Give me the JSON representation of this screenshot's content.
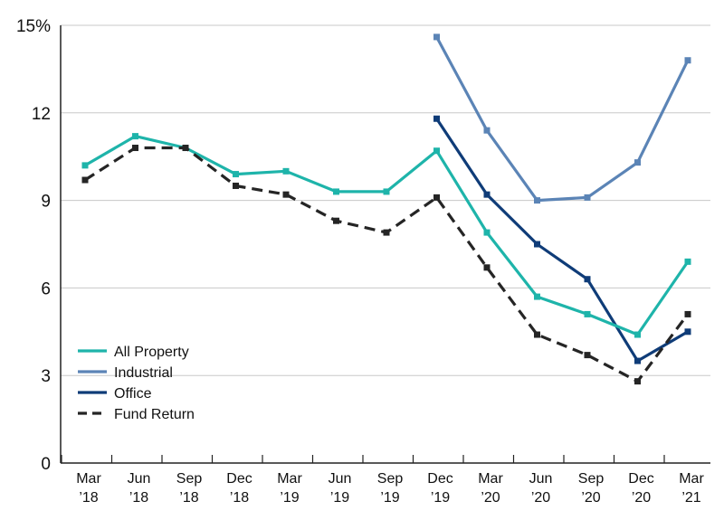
{
  "chart_data": {
    "type": "line",
    "title": "",
    "xlabel": "",
    "ylabel": "",
    "ylim": [
      0,
      15
    ],
    "yticks": [
      {
        "value": 0,
        "label": "0"
      },
      {
        "value": 3,
        "label": "3"
      },
      {
        "value": 6,
        "label": "6"
      },
      {
        "value": 9,
        "label": "9"
      },
      {
        "value": 12,
        "label": "12"
      },
      {
        "value": 15,
        "label": "15%"
      }
    ],
    "categories": [
      {
        "month": "Mar",
        "year": "’18"
      },
      {
        "month": "Jun",
        "year": "’18"
      },
      {
        "month": "Sep",
        "year": "’18"
      },
      {
        "month": "Dec",
        "year": "’18"
      },
      {
        "month": "Mar",
        "year": "’19"
      },
      {
        "month": "Jun",
        "year": "’19"
      },
      {
        "month": "Sep",
        "year": "’19"
      },
      {
        "month": "Dec",
        "year": "’19"
      },
      {
        "month": "Mar",
        "year": "’20"
      },
      {
        "month": "Jun",
        "year": "’20"
      },
      {
        "month": "Sep",
        "year": "’20"
      },
      {
        "month": "Dec",
        "year": "’20"
      },
      {
        "month": "Mar",
        "year": "’21"
      }
    ],
    "grid": "horizontal",
    "legend_position": "bottom-left",
    "series": [
      {
        "name": "All Property",
        "color": "#1eb4aa",
        "dash": false,
        "values": [
          10.2,
          11.2,
          10.8,
          9.9,
          10.0,
          9.3,
          9.3,
          10.7,
          7.9,
          5.7,
          5.1,
          4.4,
          6.9
        ]
      },
      {
        "name": "Industrial",
        "color": "#5b84b6",
        "dash": false,
        "values": [
          null,
          null,
          null,
          null,
          null,
          null,
          null,
          14.6,
          11.4,
          9.0,
          9.1,
          10.3,
          13.8
        ]
      },
      {
        "name": "Office",
        "color": "#0f3c78",
        "dash": false,
        "values": [
          null,
          null,
          null,
          null,
          null,
          null,
          null,
          11.8,
          9.2,
          7.5,
          6.3,
          3.5,
          4.5
        ]
      },
      {
        "name": "Fund Return",
        "color": "#252525",
        "dash": true,
        "values": [
          9.7,
          10.8,
          10.8,
          9.5,
          9.2,
          8.3,
          7.9,
          9.1,
          6.7,
          4.4,
          3.7,
          2.8,
          5.1
        ]
      }
    ]
  }
}
